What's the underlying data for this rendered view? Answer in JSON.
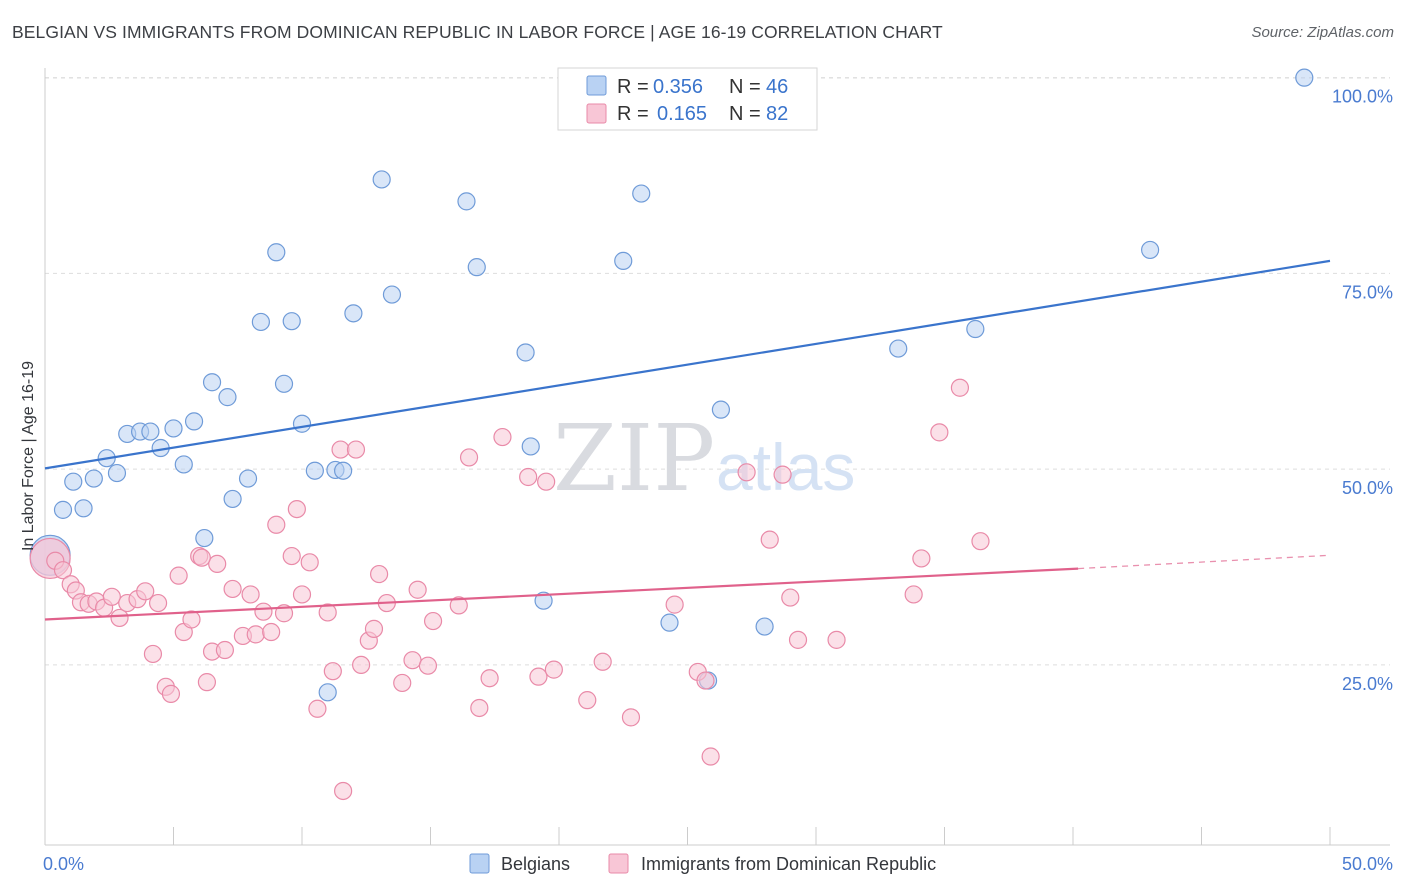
{
  "title": "BELGIAN VS IMMIGRANTS FROM DOMINICAN REPUBLIC IN LABOR FORCE | AGE 16-19 CORRELATION CHART",
  "source": "Source: ZipAtlas.com",
  "watermark": {
    "zip": "ZIP",
    "atlas": "atlas"
  },
  "colors": {
    "blue_fill": "#b9d2f3",
    "blue_stroke": "#6f9bd8",
    "blue_line": "#3a74cc",
    "pink_fill": "#f8c6d6",
    "pink_stroke": "#e98aa8",
    "pink_line": "#e0618b",
    "value_text": "#3a74cc",
    "grid": "#dddddd"
  },
  "stats": [
    {
      "r_label": "R =",
      "r_value": "0.356",
      "n_label": "N =",
      "n_value": "46",
      "series": "Belgians"
    },
    {
      "r_label": "R =",
      "r_value": "0.165",
      "n_label": "N =",
      "n_value": "82",
      "series": "Immigrants from Dominican Republic"
    }
  ],
  "chart_data": {
    "type": "scatter",
    "title": "BELGIAN VS IMMIGRANTS FROM DOMINICAN REPUBLIC IN LABOR FORCE | AGE 16-19 CORRELATION CHART",
    "xlabel": "",
    "ylabel": "In Labor Force | Age 16-19",
    "xlim": [
      0,
      50
    ],
    "ylim": [
      2,
      102
    ],
    "x_ticks": [
      0,
      50
    ],
    "x_tick_labels": [
      "0.0%",
      "50.0%"
    ],
    "y_ticks": [
      25,
      50,
      75,
      100
    ],
    "y_tick_labels": [
      "25.0%",
      "50.0%",
      "75.0%",
      "100.0%"
    ],
    "grid": true,
    "legend_position": "bottom-center",
    "series": [
      {
        "name": "Belgians",
        "color": "#b9d2f3",
        "trend": {
          "x": [
            0,
            50
          ],
          "y": [
            50.1,
            76.6
          ]
        },
        "points": [
          {
            "x": 0.2,
            "y": 39.0,
            "big": true
          },
          {
            "x": 0.7,
            "y": 44.8
          },
          {
            "x": 1.1,
            "y": 48.4
          },
          {
            "x": 1.5,
            "y": 45.0
          },
          {
            "x": 1.9,
            "y": 48.8
          },
          {
            "x": 2.4,
            "y": 51.4
          },
          {
            "x": 2.8,
            "y": 49.5
          },
          {
            "x": 3.2,
            "y": 54.5
          },
          {
            "x": 3.7,
            "y": 54.8
          },
          {
            "x": 4.1,
            "y": 54.8
          },
          {
            "x": 4.5,
            "y": 52.7
          },
          {
            "x": 5.0,
            "y": 55.2
          },
          {
            "x": 5.4,
            "y": 50.6
          },
          {
            "x": 5.8,
            "y": 56.1
          },
          {
            "x": 6.2,
            "y": 41.2
          },
          {
            "x": 6.5,
            "y": 61.1
          },
          {
            "x": 7.1,
            "y": 59.2
          },
          {
            "x": 7.3,
            "y": 46.2
          },
          {
            "x": 7.9,
            "y": 48.8
          },
          {
            "x": 8.4,
            "y": 68.8
          },
          {
            "x": 9.0,
            "y": 77.7
          },
          {
            "x": 9.3,
            "y": 60.9
          },
          {
            "x": 9.6,
            "y": 68.9
          },
          {
            "x": 10.0,
            "y": 55.8
          },
          {
            "x": 10.5,
            "y": 49.8
          },
          {
            "x": 11.0,
            "y": 21.5
          },
          {
            "x": 11.3,
            "y": 49.9
          },
          {
            "x": 11.6,
            "y": 49.8
          },
          {
            "x": 12.0,
            "y": 69.9
          },
          {
            "x": 13.1,
            "y": 87.0
          },
          {
            "x": 13.5,
            "y": 72.3
          },
          {
            "x": 16.4,
            "y": 84.2
          },
          {
            "x": 16.8,
            "y": 75.8
          },
          {
            "x": 18.7,
            "y": 64.9
          },
          {
            "x": 18.9,
            "y": 52.9
          },
          {
            "x": 19.4,
            "y": 33.2
          },
          {
            "x": 22.5,
            "y": 76.6
          },
          {
            "x": 23.2,
            "y": 85.2
          },
          {
            "x": 24.3,
            "y": 30.4
          },
          {
            "x": 25.8,
            "y": 23.0
          },
          {
            "x": 26.3,
            "y": 57.6
          },
          {
            "x": 28.0,
            "y": 29.9
          },
          {
            "x": 33.2,
            "y": 65.4
          },
          {
            "x": 36.2,
            "y": 67.9
          },
          {
            "x": 43.0,
            "y": 78.0
          },
          {
            "x": 49.0,
            "y": 100.0
          }
        ]
      },
      {
        "name": "Immigrants from Dominican Republic",
        "color": "#f8c6d6",
        "trend": {
          "x": [
            0,
            40.2
          ],
          "y": [
            30.8,
            37.3
          ]
        },
        "trend_dashed": {
          "x": [
            40.2,
            50
          ],
          "y": [
            37.3,
            39.0
          ]
        },
        "points": [
          {
            "x": 0.2,
            "y": 38.6,
            "big": true
          },
          {
            "x": 0.4,
            "y": 38.3
          },
          {
            "x": 0.7,
            "y": 37.1
          },
          {
            "x": 1.0,
            "y": 35.3
          },
          {
            "x": 1.2,
            "y": 34.5
          },
          {
            "x": 1.4,
            "y": 33.0
          },
          {
            "x": 1.7,
            "y": 32.8
          },
          {
            "x": 2.0,
            "y": 33.1
          },
          {
            "x": 2.3,
            "y": 32.3
          },
          {
            "x": 2.6,
            "y": 33.7
          },
          {
            "x": 2.9,
            "y": 31.0
          },
          {
            "x": 3.2,
            "y": 32.9
          },
          {
            "x": 3.6,
            "y": 33.4
          },
          {
            "x": 3.9,
            "y": 34.4
          },
          {
            "x": 4.2,
            "y": 26.4
          },
          {
            "x": 4.4,
            "y": 32.9
          },
          {
            "x": 4.7,
            "y": 22.2
          },
          {
            "x": 4.9,
            "y": 21.3
          },
          {
            "x": 5.2,
            "y": 36.4
          },
          {
            "x": 5.4,
            "y": 29.2
          },
          {
            "x": 5.7,
            "y": 30.8
          },
          {
            "x": 6.0,
            "y": 38.9
          },
          {
            "x": 6.3,
            "y": 22.8
          },
          {
            "x": 6.5,
            "y": 26.7
          },
          {
            "x": 6.7,
            "y": 37.9
          },
          {
            "x": 7.0,
            "y": 26.9
          },
          {
            "x": 7.3,
            "y": 34.7
          },
          {
            "x": 7.7,
            "y": 28.7
          },
          {
            "x": 8.0,
            "y": 34.0
          },
          {
            "x": 8.2,
            "y": 28.9
          },
          {
            "x": 8.5,
            "y": 31.8
          },
          {
            "x": 8.8,
            "y": 29.2
          },
          {
            "x": 9.0,
            "y": 42.9
          },
          {
            "x": 9.3,
            "y": 31.6
          },
          {
            "x": 9.6,
            "y": 38.9
          },
          {
            "x": 9.8,
            "y": 44.9
          },
          {
            "x": 10.0,
            "y": 34.0
          },
          {
            "x": 10.3,
            "y": 38.1
          },
          {
            "x": 10.6,
            "y": 19.4
          },
          {
            "x": 11.0,
            "y": 31.7
          },
          {
            "x": 11.2,
            "y": 24.2
          },
          {
            "x": 11.5,
            "y": 52.5
          },
          {
            "x": 11.6,
            "y": 8.9
          },
          {
            "x": 12.1,
            "y": 52.5
          },
          {
            "x": 12.3,
            "y": 25.0
          },
          {
            "x": 12.6,
            "y": 28.1
          },
          {
            "x": 12.8,
            "y": 29.6
          },
          {
            "x": 13.0,
            "y": 36.6
          },
          {
            "x": 13.3,
            "y": 32.9
          },
          {
            "x": 13.9,
            "y": 22.7
          },
          {
            "x": 14.3,
            "y": 25.6
          },
          {
            "x": 14.5,
            "y": 34.6
          },
          {
            "x": 14.9,
            "y": 24.9
          },
          {
            "x": 15.1,
            "y": 30.6
          },
          {
            "x": 16.1,
            "y": 32.6
          },
          {
            "x": 16.5,
            "y": 51.5
          },
          {
            "x": 16.9,
            "y": 19.5
          },
          {
            "x": 17.3,
            "y": 23.3
          },
          {
            "x": 17.8,
            "y": 54.1
          },
          {
            "x": 18.8,
            "y": 49.0
          },
          {
            "x": 19.2,
            "y": 23.5
          },
          {
            "x": 19.5,
            "y": 48.4
          },
          {
            "x": 19.8,
            "y": 24.4
          },
          {
            "x": 21.1,
            "y": 20.5
          },
          {
            "x": 21.7,
            "y": 25.4
          },
          {
            "x": 22.8,
            "y": 18.3
          },
          {
            "x": 24.5,
            "y": 32.7
          },
          {
            "x": 25.4,
            "y": 24.1
          },
          {
            "x": 25.9,
            "y": 13.3
          },
          {
            "x": 27.3,
            "y": 49.6
          },
          {
            "x": 28.2,
            "y": 41.0
          },
          {
            "x": 28.7,
            "y": 49.3
          },
          {
            "x": 29.0,
            "y": 33.6
          },
          {
            "x": 29.3,
            "y": 28.2
          },
          {
            "x": 30.8,
            "y": 28.2
          },
          {
            "x": 33.8,
            "y": 34.0
          },
          {
            "x": 34.1,
            "y": 38.6
          },
          {
            "x": 34.8,
            "y": 54.7
          },
          {
            "x": 35.6,
            "y": 60.4
          },
          {
            "x": 36.4,
            "y": 40.8
          },
          {
            "x": 25.7,
            "y": 23.0
          },
          {
            "x": 6.1,
            "y": 38.7
          }
        ]
      }
    ]
  }
}
